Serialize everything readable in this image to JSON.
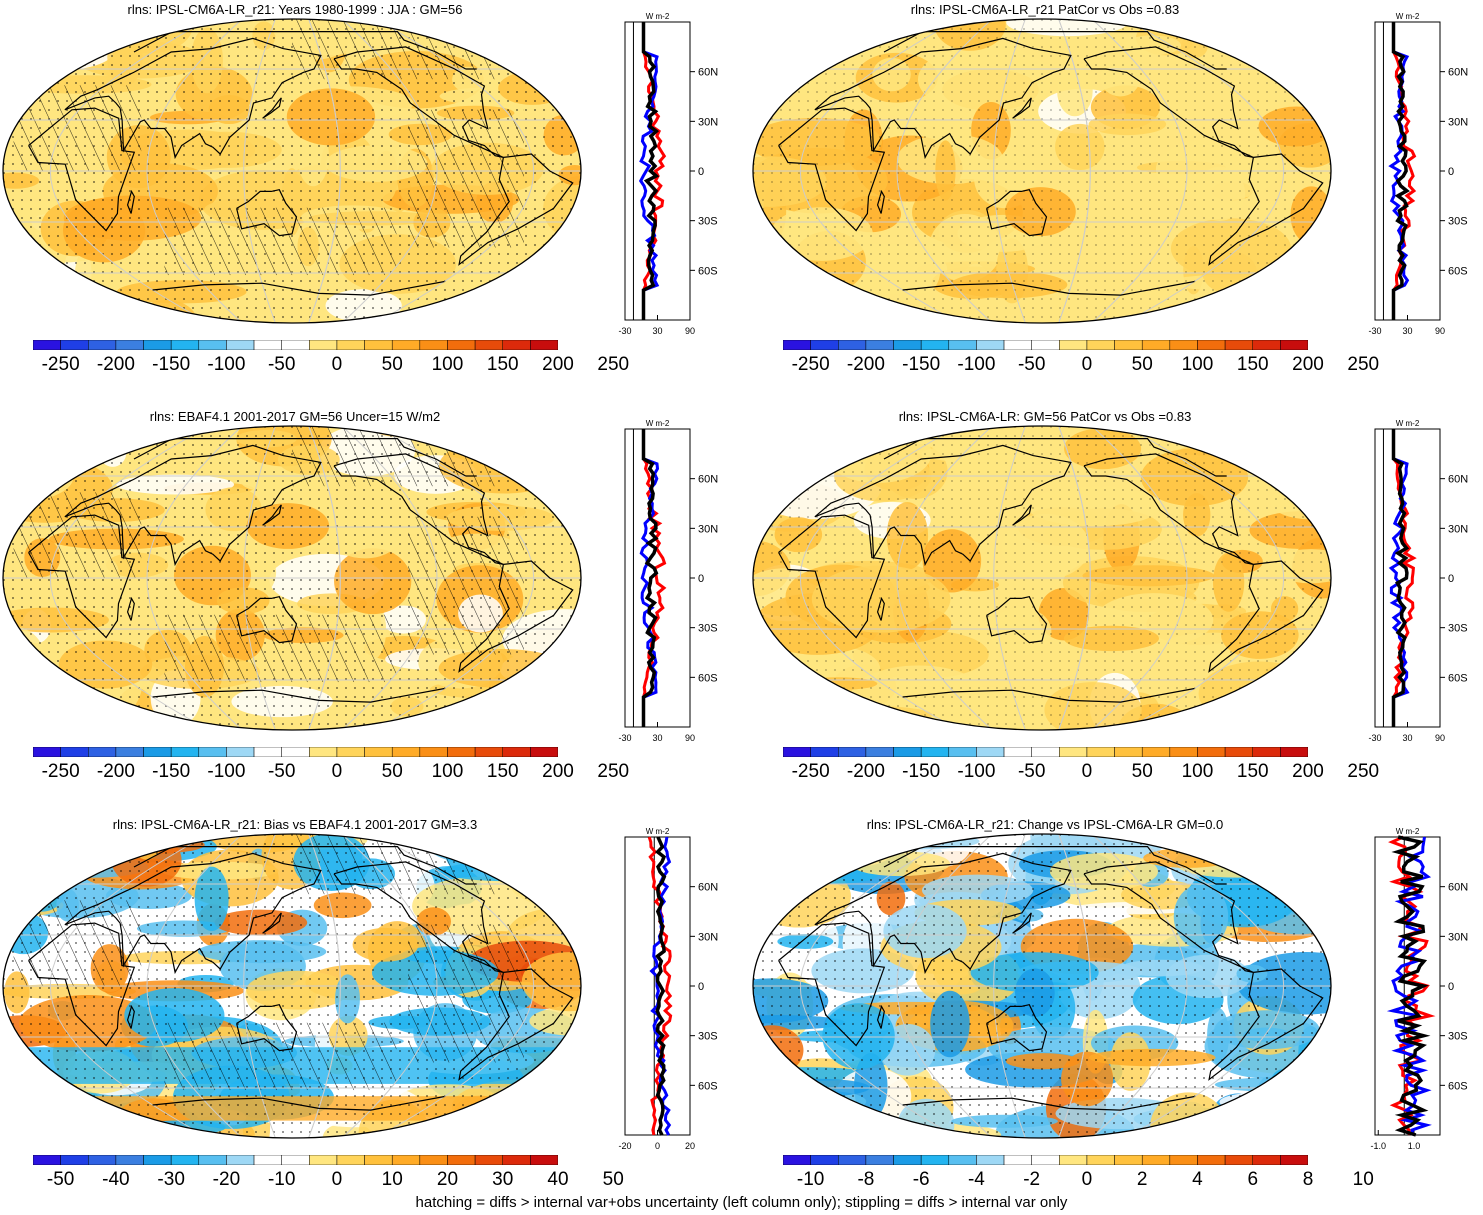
{
  "footer": "hatching = diffs > internal var+obs uncertainty (left column only); stippling = diffs > internal var only",
  "zonal_unit": "W m-2",
  "lat_labels": [
    "60N",
    "30N",
    "0",
    "30S",
    "60S"
  ],
  "palette": {
    "neg": [
      "#2a12e0",
      "#1f3fe6",
      "#2e61e3",
      "#3b7fe0",
      "#1b9be6",
      "#23b4f0",
      "#58bff0",
      "#9ed8f5"
    ],
    "pos": [
      "#fff5b0",
      "#ffe680",
      "#ffd45a",
      "#ffc13d",
      "#ffab27",
      "#fa8f16",
      "#f26d0c",
      "#e84b0a",
      "#dc2a0b",
      "#c80d0d"
    ],
    "zero": "#ffffff"
  },
  "panels": [
    {
      "id": "p1",
      "title": "rlns: IPSL-CM6A-LR_r21: Years 1980-1999 : JJA : GM=56",
      "colorbar_ticks": [
        "-250",
        "-200",
        "-150",
        "-100",
        "-50",
        "0",
        "50",
        "100",
        "150",
        "200",
        "250"
      ],
      "zonal_ticks": [
        "-30",
        "30",
        "90"
      ],
      "kind": "abs",
      "hatch": true
    },
    {
      "id": "p2",
      "title": "rlns: IPSL-CM6A-LR_r21 PatCor vs Obs =0.83",
      "colorbar_ticks": [
        "-250",
        "-200",
        "-150",
        "-100",
        "-50",
        "0",
        "50",
        "100",
        "150",
        "200",
        "250"
      ],
      "zonal_ticks": [
        "-30",
        "30",
        "90"
      ],
      "kind": "abs",
      "hatch": false
    },
    {
      "id": "p3",
      "title": "rlns: EBAF4.1 2001-2017 GM=56 Uncer=15 W/m2",
      "colorbar_ticks": [
        "-250",
        "-200",
        "-150",
        "-100",
        "-50",
        "0",
        "50",
        "100",
        "150",
        "200",
        "250"
      ],
      "zonal_ticks": [
        "-30",
        "30",
        "90"
      ],
      "kind": "abs",
      "hatch": true
    },
    {
      "id": "p4",
      "title": "rlns: IPSL-CM6A-LR: GM=56 PatCor vs Obs =0.83",
      "colorbar_ticks": [
        "-250",
        "-200",
        "-150",
        "-100",
        "-50",
        "0",
        "50",
        "100",
        "150",
        "200",
        "250"
      ],
      "zonal_ticks": [
        "-30",
        "30",
        "90"
      ],
      "kind": "abs",
      "hatch": false
    },
    {
      "id": "p5",
      "title": "rlns: IPSL-CM6A-LR_r21: Bias vs EBAF4.1 2001-2017 GM=3.3",
      "colorbar_ticks": [
        "-50",
        "-40",
        "-30",
        "-20",
        "-10",
        "0",
        "10",
        "20",
        "30",
        "40",
        "50"
      ],
      "zonal_ticks": [
        "-20",
        "0",
        "20"
      ],
      "kind": "bias",
      "hatch": true
    },
    {
      "id": "p6",
      "title": "rlns: IPSL-CM6A-LR_r21: Change vs IPSL-CM6A-LR GM=0.0",
      "colorbar_ticks": [
        "-10",
        "-8",
        "-6",
        "-4",
        "-2",
        "0",
        "2",
        "4",
        "6",
        "8",
        "10"
      ],
      "zonal_ticks": [
        "-1.0",
        "1.0"
      ],
      "kind": "change",
      "hatch": false
    }
  ]
}
